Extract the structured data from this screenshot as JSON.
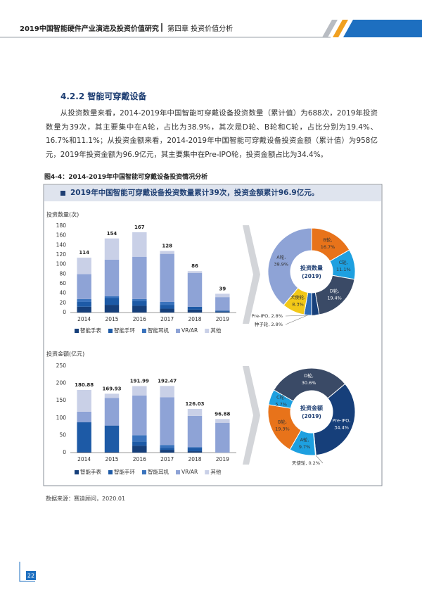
{
  "header": {
    "title": "2019中国智能硬件产业演进及投资价值研究",
    "chapter": "第四章 投资价值分析"
  },
  "section": {
    "heading": "4.2.2 智能可穿戴设备",
    "paragraph": "从投资数量来看，2014-2019年中国智能可穿戴设备投资数量（累计值）为688次，2019年投资数量为39次，其主要集中在A轮，占比为38.9%，其次是D轮、B轮和C轮，占比分别为19.4%、16.7%和11.1%；从投资金额来看，2014-2019年中国智能可穿戴设备投资金额（累计值）为958亿元，2019年投资金额为96.9亿元，其主要集中在Pre-IPO轮，投资金额占比为34.4%。"
  },
  "figure": {
    "caption": "图4-4：2014-2019年中国智能可穿戴设备投资情况分析",
    "banner": "2019年中国智能可穿戴设备投资数量累计39次，投资金额累计96.9亿元。",
    "charts": [
      {
        "type": "stacked_bar",
        "y_label": "投资数量(次)",
        "categories": [
          "2014",
          "2015",
          "2016",
          "2017",
          "2018",
          "2019"
        ],
        "ylim": [
          0,
          180
        ],
        "yticks": [
          0,
          20,
          40,
          60,
          80,
          100,
          120,
          140,
          160,
          180
        ],
        "series": [
          {
            "name": "智能手表",
            "color": "#163f7a",
            "values": [
              12,
              16,
              14,
              8,
              6,
              2
            ]
          },
          {
            "name": "智能手环",
            "color": "#1d5aa6",
            "values": [
              10,
              14,
              10,
              8,
              6,
              2
            ]
          },
          {
            "name": "智能耳机",
            "color": "#3a73bd",
            "values": [
              6,
              4,
              4,
              6,
              0,
              0
            ]
          },
          {
            "name": "VR/AR",
            "color": "#8ea3d6",
            "values": [
              52,
              76,
              88,
              100,
              70,
              28
            ]
          },
          {
            "name": "其他",
            "color": "#c9d0e7",
            "values": [
              34,
              44,
              51,
              6,
              4,
              7
            ]
          }
        ],
        "totals": [
          114,
          154,
          167,
          128,
          86,
          39
        ]
      },
      {
        "type": "donut",
        "center_title": "投资数量",
        "center_subtitle": "(2019)",
        "categories": [
          "B轮,",
          "C轮,",
          "D轮,",
          "Pre-IPO,",
          "种子轮,",
          "天使轮,",
          "A轮,"
        ],
        "values": [
          16.7,
          11.1,
          19.4,
          2.8,
          2.8,
          8.3,
          38.9
        ],
        "value_labels": [
          "16.7%",
          "11.1%",
          "19.4%",
          "2.8%",
          "2.8%",
          "8.3%",
          "38.9%"
        ],
        "colors": [
          "#e8731a",
          "#1ea0e0",
          "#3a4a66",
          "#163f7a",
          "#2e6cb8",
          "#f2c818",
          "#8ea3d6"
        ]
      },
      {
        "type": "stacked_bar",
        "y_label": "投资金额(亿元)",
        "categories": [
          "2014",
          "2015",
          "2016",
          "2017",
          "2018",
          "2019"
        ],
        "ylim": [
          0,
          250
        ],
        "yticks": [
          0,
          50,
          100,
          150,
          200,
          250
        ],
        "series": [
          {
            "name": "智能手表",
            "color": "#163f7a",
            "values": [
              2,
              2,
              20,
              8,
              4,
              0
            ]
          },
          {
            "name": "智能手环",
            "color": "#1d5aa6",
            "values": [
              86,
              76,
              12,
              6,
              10,
              0
            ]
          },
          {
            "name": "智能耳机",
            "color": "#3a73bd",
            "values": [
              0,
              0,
              18,
              8,
              2,
              0
            ]
          },
          {
            "name": "VR/AR",
            "color": "#8ea3d6",
            "values": [
              30,
              80,
              115,
              138,
              90,
              86
            ]
          },
          {
            "name": "其他",
            "color": "#c9d0e7",
            "values": [
              62.88,
              11.93,
              26.99,
              32.47,
              20.03,
              10.88
            ]
          }
        ],
        "totals": [
          180.88,
          169.93,
          191.99,
          192.47,
          126.03,
          96.88
        ]
      },
      {
        "type": "donut",
        "center_title": "投资金额",
        "center_subtitle": "(2019)",
        "categories": [
          "D轮,",
          "Pre-IPO,",
          "天使轮,",
          "A轮,",
          "B轮,",
          "C轮,"
        ],
        "values": [
          30.6,
          34.4,
          0.2,
          9.7,
          19.3,
          5.7
        ],
        "value_labels": [
          "30.6%",
          "34.4%",
          "0.2%",
          "9.7%",
          "19.3%",
          "5.7%"
        ],
        "colors": [
          "#3a4a66",
          "#163f7a",
          "#f2c818",
          "#1ea0e0",
          "#e8731a",
          "#1ea0e0"
        ]
      }
    ]
  },
  "source": "数据来源：赛迪顾问，2020.01",
  "page_number": 22
}
